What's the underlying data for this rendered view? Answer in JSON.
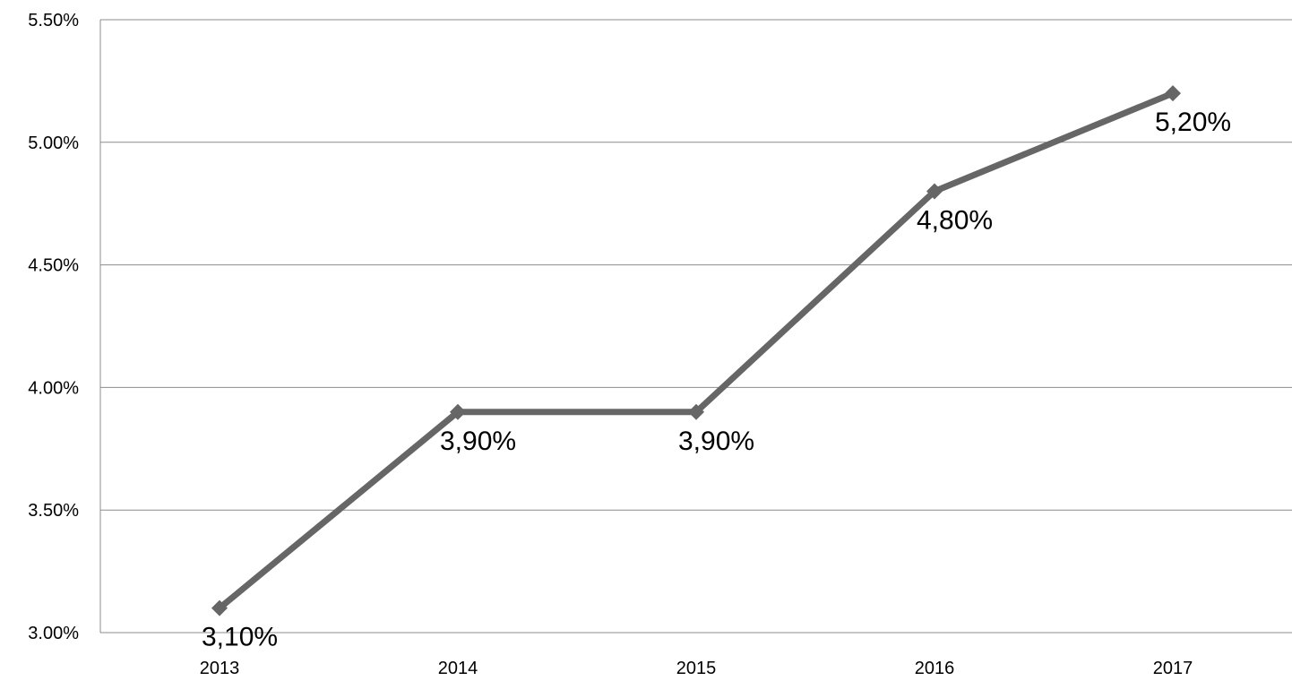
{
  "chart_data": {
    "type": "line",
    "categories": [
      "2013",
      "2014",
      "2015",
      "2016",
      "2017"
    ],
    "series": [
      {
        "values": [
          3.1,
          3.9,
          3.9,
          4.8,
          5.2
        ],
        "data_labels": [
          "3,10%",
          "3,90%",
          "3,90%",
          "4,80%",
          "5,20%"
        ],
        "color": "#666666",
        "marker": "diamond"
      }
    ],
    "yticks": [
      3.0,
      3.5,
      4.0,
      4.5,
      5.0,
      5.5
    ],
    "ytick_labels": [
      "3.00%",
      "3.50%",
      "4.00%",
      "4.50%",
      "5.00%",
      "5.50%"
    ],
    "ylim": [
      3.0,
      5.5
    ],
    "title": "",
    "xlabel": "",
    "ylabel": "",
    "grid": "horizontal",
    "legend": "none"
  }
}
